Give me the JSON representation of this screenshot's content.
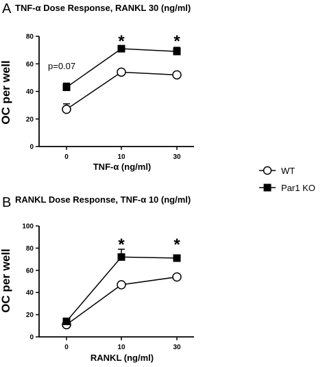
{
  "chart_data": [
    {
      "type": "line",
      "panel": "A",
      "title": "TNF-α Dose Response, RANKL 30 (ng/ml)",
      "xlabel": "TNF-α (ng/ml)",
      "ylabel": "OC per well",
      "categories": [
        "0",
        "10",
        "30"
      ],
      "ylim": [
        0,
        80
      ],
      "yticks": [
        0,
        20,
        40,
        60,
        80
      ],
      "series": [
        {
          "name": "WT",
          "values": [
            27,
            54,
            52
          ],
          "errors": [
            4,
            1,
            1
          ]
        },
        {
          "name": "Par1 KO",
          "values": [
            43,
            71,
            69
          ],
          "errors": [
            3,
            2,
            3
          ]
        }
      ],
      "annotations": [
        {
          "text": "p=0.07",
          "category": "0"
        }
      ],
      "significance": [
        {
          "text": "*",
          "category": "10"
        },
        {
          "text": "*",
          "category": "30"
        }
      ]
    },
    {
      "type": "line",
      "panel": "B",
      "title": "RANKL Dose Response, TNF-α 10 (ng/ml)",
      "xlabel": "RANKL (ng/ml)",
      "ylabel": "OC per well",
      "categories": [
        "0",
        "10",
        "30"
      ],
      "ylim": [
        0,
        100
      ],
      "yticks": [
        0,
        20,
        40,
        60,
        80,
        100
      ],
      "series": [
        {
          "name": "WT",
          "values": [
            11,
            47,
            54
          ],
          "errors": [
            1,
            1,
            1
          ]
        },
        {
          "name": "Par1 KO",
          "values": [
            14,
            72,
            71
          ],
          "errors": [
            1,
            7,
            2
          ]
        }
      ],
      "annotations": [],
      "significance": [
        {
          "text": "*",
          "category": "10"
        },
        {
          "text": "*",
          "category": "30"
        }
      ]
    }
  ],
  "legend": {
    "position": "right",
    "entries": [
      {
        "label": "WT",
        "marker": "open-circle"
      },
      {
        "label": "Par1 KO",
        "marker": "filled-square"
      }
    ]
  }
}
